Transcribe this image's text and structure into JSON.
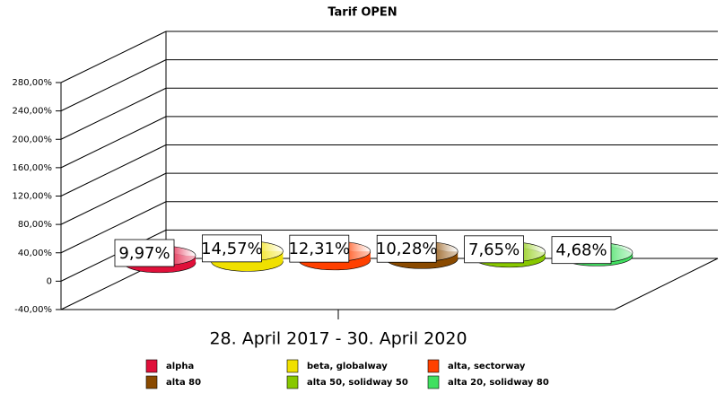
{
  "chart_data": {
    "type": "bar3d",
    "title": "Tarif OPEN",
    "categories": [
      "28. April 2017 - 30. April 2020"
    ],
    "series": [
      {
        "name": "alpha",
        "color": "#e0103a",
        "values": [
          9.97
        ],
        "value_labels": [
          "9,97%"
        ]
      },
      {
        "name": "beta, globalway",
        "color": "#f0e000",
        "values": [
          14.57
        ],
        "value_labels": [
          "14,57%"
        ]
      },
      {
        "name": "alta, sectorway",
        "color": "#ff4000",
        "values": [
          12.31
        ],
        "value_labels": [
          "12,31%"
        ]
      },
      {
        "name": "alta 80",
        "color": "#8a4a00",
        "values": [
          10.28
        ],
        "value_labels": [
          "10,28%"
        ]
      },
      {
        "name": "alta 50, solidway 50",
        "color": "#88c800",
        "values": [
          7.65
        ],
        "value_labels": [
          "7,65%"
        ]
      },
      {
        "name": "alta 20, solidway 80",
        "color": "#40e060",
        "values": [
          4.68
        ],
        "value_labels": [
          "4,68%"
        ]
      }
    ],
    "ylim": [
      -40,
      280
    ],
    "yticks": [
      {
        "value": -40,
        "label": "-40,00%"
      },
      0,
      {
        "value": 40,
        "label": "40,00%"
      },
      {
        "value": 80,
        "label": "80,00%"
      },
      {
        "value": 120,
        "label": "120,00%"
      },
      {
        "value": 160,
        "label": "160,00%"
      },
      {
        "value": 200,
        "label": "200,00%"
      },
      {
        "value": 240,
        "label": "240,00%"
      },
      {
        "value": 280,
        "label": "280,00%"
      }
    ],
    "grid": true
  }
}
